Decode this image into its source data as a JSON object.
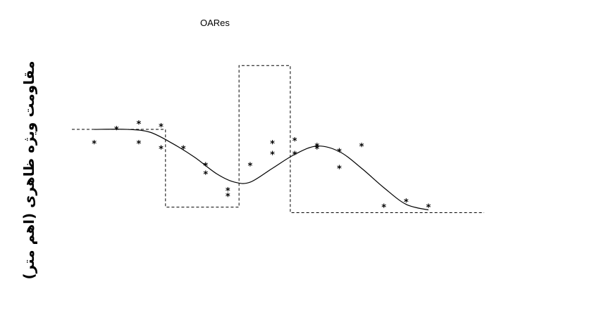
{
  "chart_data": {
    "type": "scatter",
    "title": "OARes",
    "ylabel": "مقاومت ویژه ظاهری (اهم متر)",
    "xlabel": "",
    "xlim": [
      0,
      22
    ],
    "ylim": [
      0,
      1
    ],
    "grid": false,
    "series": [
      {
        "kind": "measured",
        "marker": "*",
        "points": [
          [
            1.0,
            0.56
          ],
          [
            2.0,
            0.61
          ],
          [
            3.0,
            0.63
          ],
          [
            3.0,
            0.56
          ],
          [
            4.0,
            0.62
          ],
          [
            4.0,
            0.54
          ],
          [
            5.0,
            0.54
          ],
          [
            6.0,
            0.48
          ],
          [
            6.0,
            0.45
          ],
          [
            7.0,
            0.39
          ],
          [
            7.0,
            0.37
          ],
          [
            8.0,
            0.48
          ],
          [
            9.0,
            0.56
          ],
          [
            9.0,
            0.52
          ],
          [
            10.0,
            0.57
          ],
          [
            10.0,
            0.52
          ],
          [
            11.0,
            0.54
          ],
          [
            11.0,
            0.55
          ],
          [
            12.0,
            0.53
          ],
          [
            12.0,
            0.47
          ],
          [
            13.0,
            0.55
          ],
          [
            14.0,
            0.33
          ],
          [
            15.0,
            0.35
          ],
          [
            16.0,
            0.33
          ]
        ]
      },
      {
        "kind": "calculated",
        "line": "solid",
        "points": [
          [
            1.0,
            0.61
          ],
          [
            2.5,
            0.61
          ],
          [
            3.5,
            0.6
          ],
          [
            4.5,
            0.56
          ],
          [
            5.5,
            0.51
          ],
          [
            6.5,
            0.45
          ],
          [
            7.3,
            0.42
          ],
          [
            8.0,
            0.42
          ],
          [
            9.0,
            0.47
          ],
          [
            10.0,
            0.52
          ],
          [
            11.0,
            0.55
          ],
          [
            12.0,
            0.53
          ],
          [
            13.0,
            0.47
          ],
          [
            14.0,
            0.4
          ],
          [
            15.0,
            0.34
          ],
          [
            16.0,
            0.32
          ]
        ]
      },
      {
        "kind": "model",
        "line": "dashed",
        "points": [
          [
            0.0,
            0.61
          ],
          [
            4.2,
            0.61
          ],
          [
            4.2,
            0.33
          ],
          [
            7.5,
            0.33
          ],
          [
            7.5,
            0.84
          ],
          [
            9.8,
            0.84
          ],
          [
            9.8,
            0.31
          ],
          [
            18.5,
            0.31
          ]
        ]
      }
    ]
  }
}
